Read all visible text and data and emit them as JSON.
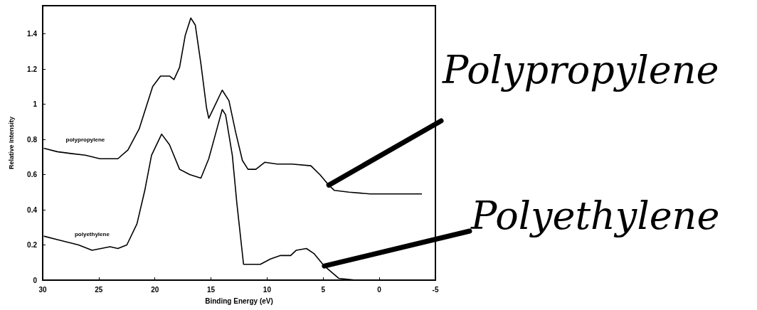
{
  "chart_data": {
    "type": "line",
    "xlabel": "Binding Energy (eV)",
    "ylabel": "Relative Intensity",
    "xlim": [
      30,
      -5
    ],
    "xticks": [
      30,
      25,
      20,
      15,
      10,
      5,
      0,
      -5
    ],
    "ylim": [
      0,
      1.56
    ],
    "yticks": [
      0,
      0.2,
      0.4,
      0.6,
      0.8,
      1,
      1.2,
      1.4
    ],
    "grid": false,
    "marker": "none",
    "line_style": "solid",
    "series": [
      {
        "name": "polypropylene",
        "color": "#000000",
        "x": [
          29.9,
          28.7,
          27.5,
          26.2,
          24.9,
          23.3,
          22.4,
          21.4,
          20.8,
          20.2,
          19.5,
          18.7,
          18.3,
          17.8,
          17.3,
          16.8,
          16.4,
          15.9,
          15.4,
          15.2,
          14.6,
          14.0,
          13.4,
          12.8,
          12.2,
          11.7,
          11.0,
          10.2,
          9.1,
          7.8,
          6.1,
          5.3,
          4.5,
          4.0,
          2.7,
          0.8,
          -1.7,
          -3.8
        ],
        "values": [
          0.75,
          0.73,
          0.72,
          0.71,
          0.69,
          0.69,
          0.74,
          0.86,
          0.98,
          1.1,
          1.16,
          1.16,
          1.14,
          1.21,
          1.39,
          1.49,
          1.45,
          1.23,
          0.98,
          0.92,
          1.0,
          1.08,
          1.02,
          0.84,
          0.68,
          0.63,
          0.63,
          0.67,
          0.66,
          0.66,
          0.65,
          0.6,
          0.54,
          0.51,
          0.5,
          0.49,
          0.49,
          0.49
        ]
      },
      {
        "name": "polyethylene",
        "color": "#000000",
        "x": [
          29.9,
          28.7,
          26.8,
          25.6,
          24.0,
          23.3,
          22.5,
          21.6,
          20.9,
          20.3,
          19.4,
          18.7,
          17.8,
          16.9,
          15.9,
          15.2,
          14.6,
          14.0,
          13.7,
          13.1,
          12.7,
          12.1,
          11.7,
          10.6,
          9.7,
          8.8,
          7.9,
          7.4,
          6.5,
          5.8,
          4.9,
          3.6,
          2.1,
          -3.8
        ],
        "values": [
          0.25,
          0.23,
          0.2,
          0.17,
          0.19,
          0.18,
          0.2,
          0.32,
          0.51,
          0.71,
          0.83,
          0.77,
          0.63,
          0.6,
          0.58,
          0.69,
          0.83,
          0.97,
          0.94,
          0.71,
          0.44,
          0.09,
          0.09,
          0.09,
          0.12,
          0.14,
          0.14,
          0.17,
          0.18,
          0.15,
          0.08,
          0.01,
          0.0,
          0.0
        ]
      }
    ],
    "annotations": [
      {
        "text": "Polypropylene",
        "x": 4.5,
        "y": 0.54
      },
      {
        "text": "Polyethylene",
        "x": 4.9,
        "y": 0.08
      }
    ]
  }
}
